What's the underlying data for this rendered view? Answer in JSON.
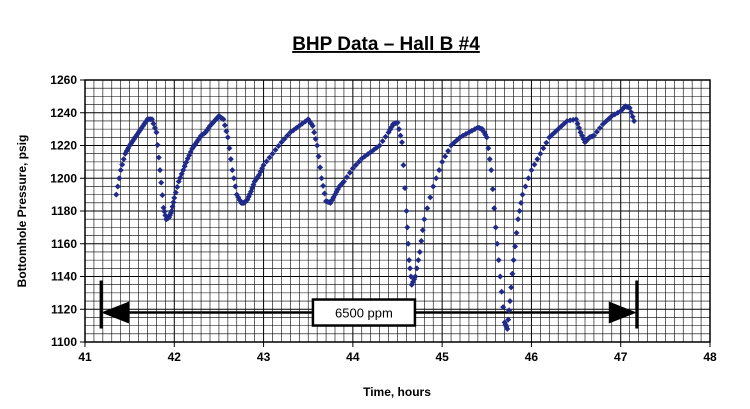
{
  "chart_data": {
    "type": "scatter",
    "title": "BHP Data – Hall B #4",
    "xlabel": "Time, hours",
    "ylabel": "Bottomhole Pressure, psig",
    "xlim": [
      41,
      48
    ],
    "ylim": [
      1100,
      1260
    ],
    "x_ticks": [
      "41",
      "42",
      "43",
      "44",
      "45",
      "46",
      "47",
      "48"
    ],
    "y_ticks": [
      "1100",
      "1120",
      "1140",
      "1160",
      "1180",
      "1200",
      "1220",
      "1240",
      "1260"
    ],
    "grid": "major and minor, both axes",
    "series_color": "#1f2a8a",
    "marker": "diamond",
    "annotation": {
      "text": "6500 ppm",
      "x_start": 41.18,
      "x_end": 47.18,
      "y": 1118
    },
    "series": [
      {
        "x": [
          41.35,
          41.4,
          41.45,
          41.5,
          41.55,
          41.6,
          41.65,
          41.7,
          41.75,
          41.8,
          41.84,
          41.88,
          41.91,
          41.94,
          41.97,
          42.0,
          42.05,
          42.1,
          42.15,
          42.2,
          42.25,
          42.3,
          42.35,
          42.4,
          42.45,
          42.5,
          42.55,
          42.6,
          42.65,
          42.7,
          42.75,
          42.78,
          42.82,
          42.86,
          42.9,
          42.95,
          43.0,
          43.1,
          43.2,
          43.3,
          43.4,
          43.5,
          43.55,
          43.6,
          43.65,
          43.7,
          43.75,
          43.8,
          43.85,
          43.9,
          44.0,
          44.1,
          44.2,
          44.3,
          44.4,
          44.45,
          44.5,
          44.55,
          44.6,
          44.63,
          44.66,
          44.7,
          44.75,
          44.8,
          44.9,
          45.0,
          45.1,
          45.2,
          45.3,
          45.4,
          45.45,
          45.5,
          45.55,
          45.6,
          45.65,
          45.7,
          45.73,
          45.76,
          45.8,
          45.85,
          45.9,
          46.0,
          46.1,
          46.2,
          46.3,
          46.4,
          46.5,
          46.55,
          46.6,
          46.65,
          46.7,
          46.8,
          46.9,
          47.0,
          47.05,
          47.1,
          47.15
        ],
        "y": [
          1190,
          1205,
          1215,
          1220,
          1224,
          1228,
          1232,
          1236,
          1236,
          1228,
          1205,
          1182,
          1175,
          1176,
          1180,
          1188,
          1198,
          1205,
          1212,
          1218,
          1222,
          1226,
          1228,
          1232,
          1235,
          1238,
          1236,
          1225,
          1205,
          1190,
          1185,
          1185,
          1187,
          1192,
          1198,
          1202,
          1208,
          1215,
          1222,
          1228,
          1232,
          1236,
          1232,
          1220,
          1200,
          1186,
          1185,
          1190,
          1195,
          1198,
          1206,
          1212,
          1216,
          1220,
          1228,
          1233,
          1234,
          1222,
          1180,
          1150,
          1135,
          1140,
          1155,
          1175,
          1195,
          1210,
          1220,
          1225,
          1228,
          1231,
          1230,
          1225,
          1205,
          1170,
          1140,
          1112,
          1108,
          1125,
          1150,
          1175,
          1190,
          1205,
          1215,
          1225,
          1230,
          1235,
          1236,
          1228,
          1222,
          1225,
          1226,
          1233,
          1238,
          1241,
          1244,
          1243,
          1235
        ]
      }
    ]
  }
}
